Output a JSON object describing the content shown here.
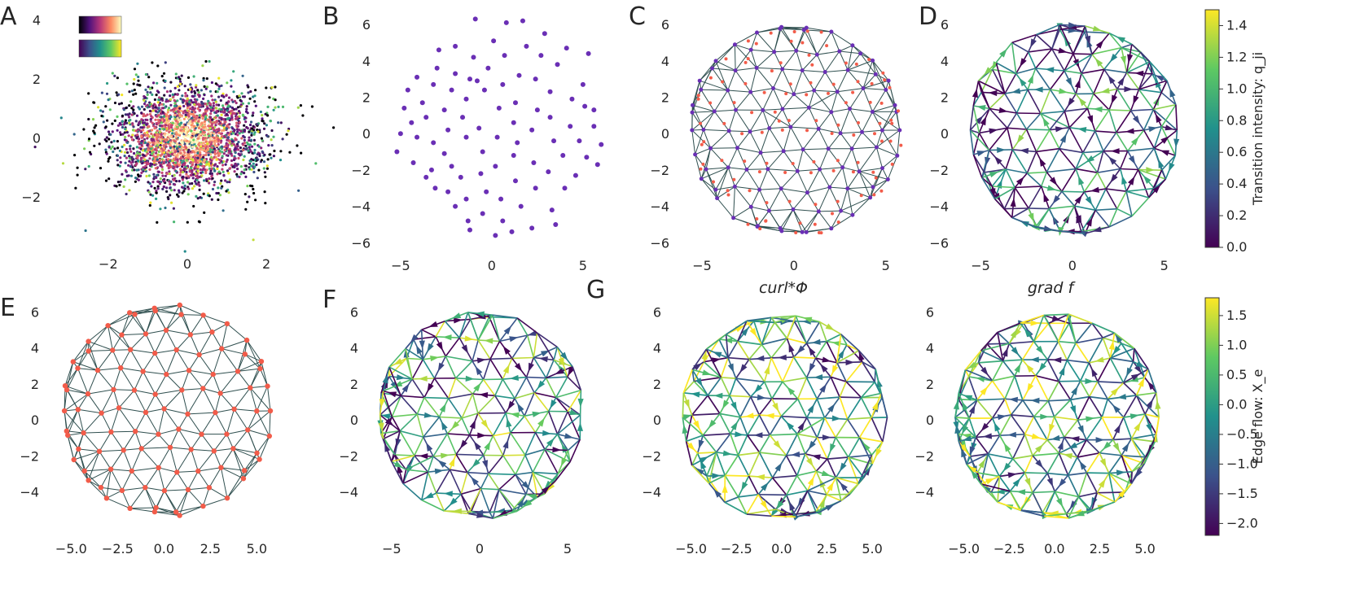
{
  "colors": {
    "mesh_line": "#2f4f4f",
    "point_purple": "#6a2fb5",
    "point_red": "#f25c4a",
    "point_outline": "#f25c4a"
  },
  "panels": {
    "A": {
      "letter": "A",
      "xticks": [
        "−2",
        "0",
        "2"
      ],
      "yticks": [
        "4",
        "2",
        "0",
        "−2"
      ],
      "legend_cmaps": [
        "magma",
        "viridis"
      ]
    },
    "B": {
      "letter": "B",
      "xticks": [
        "−5",
        "0",
        "5"
      ],
      "yticks": [
        "6",
        "4",
        "2",
        "0",
        "−2",
        "−4",
        "−6"
      ]
    },
    "C": {
      "letter": "C",
      "xticks": [
        "−5",
        "0",
        "5"
      ],
      "yticks": [
        "6",
        "4",
        "2",
        "0",
        "−2",
        "−4",
        "−6"
      ]
    },
    "D": {
      "letter": "D",
      "xticks": [
        "−5",
        "0",
        "5"
      ],
      "yticks": [
        "6",
        "4",
        "2",
        "0",
        "−2",
        "−4",
        "−6"
      ]
    },
    "E": {
      "letter": "E",
      "xticks": [
        "−5.0",
        "−2.5",
        "0.0",
        "2.5",
        "5.0"
      ],
      "yticks": [
        "6",
        "4",
        "2",
        "0",
        "−2",
        "−4"
      ]
    },
    "F": {
      "letter": "F",
      "xticks": [
        "−5",
        "0",
        "5"
      ],
      "yticks": [
        "6",
        "4",
        "2",
        "0",
        "−2",
        "−4"
      ]
    },
    "G": {
      "letter": "G"
    },
    "G1": {
      "title": "curl*Φ",
      "xticks": [
        "−5.0",
        "−2.5",
        "0.0",
        "2.5",
        "5.0"
      ],
      "yticks": [
        "6",
        "4",
        "2",
        "0",
        "−2",
        "−4"
      ]
    },
    "G2": {
      "title": "grad f",
      "xticks": [
        "−5.0",
        "−2.5",
        "0.0",
        "2.5",
        "5.0"
      ],
      "yticks": [
        "6",
        "4",
        "2",
        "0",
        "−2",
        "−4"
      ]
    }
  },
  "colorbars": {
    "transition": {
      "label": "Transition intensity: q_ji",
      "cmap": "viridis",
      "ticks": [
        "0.0",
        "0.2",
        "0.4",
        "0.6",
        "0.8",
        "1.0",
        "1.2",
        "1.4"
      ],
      "range": [
        0.0,
        1.5
      ]
    },
    "edgeflow": {
      "label": "Edge flow: X_e",
      "cmap": "viridis",
      "ticks": [
        "−2.0",
        "−1.5",
        "−1.0",
        "−0.5",
        "0.0",
        "0.5",
        "1.0",
        "1.5"
      ],
      "range": [
        -2.2,
        1.8
      ]
    }
  },
  "chart_data": [
    {
      "panel": "A",
      "type": "scatter",
      "xlim": [
        -3.5,
        3.5
      ],
      "ylim": [
        -3.6,
        4.4
      ],
      "description_values": {
        "distribution": "gaussian",
        "center": [
          0,
          0
        ],
        "std": 1
      }
    },
    {
      "panel": "B",
      "type": "scatter",
      "xlim": [
        -6.2,
        6.3
      ],
      "ylim": [
        -6.3,
        6.9
      ],
      "points": [
        [
          -5,
          0
        ],
        [
          -5.2,
          -1
        ],
        [
          -4.8,
          1.4
        ],
        [
          -4.4,
          0.6
        ],
        [
          -4.1,
          -0.2
        ],
        [
          -4.3,
          -1.6
        ],
        [
          -4.6,
          2.4
        ],
        [
          -4.1,
          3.1
        ],
        [
          -3.8,
          1.7
        ],
        [
          -3.6,
          0.9
        ],
        [
          -3.2,
          -0.5
        ],
        [
          -3.3,
          -2.0
        ],
        [
          -3.6,
          -2.4
        ],
        [
          -3.1,
          -3.0
        ],
        [
          -3.2,
          2.7
        ],
        [
          -3.0,
          3.6
        ],
        [
          -2.9,
          4.6
        ],
        [
          -2.6,
          1.3
        ],
        [
          -2.4,
          0.2
        ],
        [
          -2.6,
          -1.1
        ],
        [
          -2.2,
          -1.8
        ],
        [
          -2.4,
          -3.2
        ],
        [
          -2.0,
          -4.0
        ],
        [
          -2.2,
          2.4
        ],
        [
          -2.0,
          3.3
        ],
        [
          -2.0,
          4.8
        ],
        [
          -1.6,
          0.9
        ],
        [
          -1.4,
          -0.2
        ],
        [
          -1.7,
          -2.4
        ],
        [
          -1.4,
          -3.6
        ],
        [
          -1.3,
          -4.8
        ],
        [
          -1.4,
          1.9
        ],
        [
          -1.2,
          3.0
        ],
        [
          -1.0,
          4.2
        ],
        [
          -0.9,
          6.3
        ],
        [
          -0.7,
          0.3
        ],
        [
          -0.5,
          -1.0
        ],
        [
          -0.6,
          -2.2
        ],
        [
          -0.3,
          -3.2
        ],
        [
          -0.5,
          -4.4
        ],
        [
          -0.4,
          2.4
        ],
        [
          -0.2,
          3.6
        ],
        [
          0.1,
          5.1
        ],
        [
          0.3,
          -0.2
        ],
        [
          0.4,
          1.4
        ],
        [
          0.2,
          -1.8
        ],
        [
          0.5,
          -3.6
        ],
        [
          0.6,
          -4.8
        ],
        [
          0.6,
          2.7
        ],
        [
          0.7,
          4.3
        ],
        [
          0.8,
          6.1
        ],
        [
          1.2,
          0.6
        ],
        [
          1.4,
          -0.5
        ],
        [
          1.2,
          -1.2
        ],
        [
          1.3,
          -2.6
        ],
        [
          1.6,
          -4.0
        ],
        [
          1.1,
          -5.4
        ],
        [
          1.3,
          1.7
        ],
        [
          1.5,
          3.2
        ],
        [
          1.9,
          4.8
        ],
        [
          1.7,
          6.2
        ],
        [
          2.2,
          0.2
        ],
        [
          2.3,
          -1.6
        ],
        [
          2.4,
          -3.0
        ],
        [
          2.2,
          -5.2
        ],
        [
          2.5,
          1.3
        ],
        [
          2.4,
          3.0
        ],
        [
          2.7,
          4.3
        ],
        [
          2.9,
          5.5
        ],
        [
          3.2,
          0.9
        ],
        [
          3.4,
          -0.4
        ],
        [
          3.1,
          -2.1
        ],
        [
          3.3,
          -4.2
        ],
        [
          3.2,
          2.3
        ],
        [
          3.6,
          3.8
        ],
        [
          3.9,
          -1.2
        ],
        [
          4.0,
          -3.0
        ],
        [
          4.3,
          0.4
        ],
        [
          4.4,
          1.9
        ],
        [
          4.1,
          4.7
        ],
        [
          4.6,
          -2.3
        ],
        [
          4.8,
          -0.4
        ],
        [
          5.0,
          2.7
        ],
        [
          5.1,
          1.5
        ],
        [
          5.2,
          -1.3
        ],
        [
          5.6,
          0.4
        ],
        [
          5.3,
          4.4
        ],
        [
          5.8,
          -1.7
        ],
        [
          6.0,
          -0.6
        ],
        [
          5.6,
          1.3
        ],
        [
          3.5,
          -5.0
        ],
        [
          0.2,
          -5.6
        ],
        [
          -1.2,
          -5.3
        ],
        [
          -0.8,
          2.9
        ]
      ]
    },
    {
      "panel": "C",
      "type": "mesh",
      "xlim": [
        -6.2,
        6.3
      ],
      "ylim": [
        -6.3,
        6.9
      ]
    },
    {
      "panel": "D",
      "type": "mesh",
      "xlim": [
        -6.2,
        6.3
      ],
      "ylim": [
        -6.3,
        6.9
      ],
      "color_by": "transition intensity"
    },
    {
      "panel": "E",
      "type": "mesh",
      "xlim": [
        -6.2,
        6.3
      ],
      "ylim": [
        -5.6,
        6.6
      ]
    },
    {
      "panel": "F",
      "type": "mesh",
      "xlim": [
        -6.2,
        6.3
      ],
      "ylim": [
        -5.6,
        6.6
      ],
      "color_by": "edge flow"
    },
    {
      "panel": "G1",
      "type": "mesh",
      "xlim": [
        -6.2,
        6.3
      ],
      "ylim": [
        -5.6,
        6.6
      ],
      "color_by": "edge flow"
    },
    {
      "panel": "G2",
      "type": "mesh",
      "xlim": [
        -6.2,
        6.3
      ],
      "ylim": [
        -5.6,
        6.6
      ],
      "color_by": "edge flow"
    }
  ]
}
